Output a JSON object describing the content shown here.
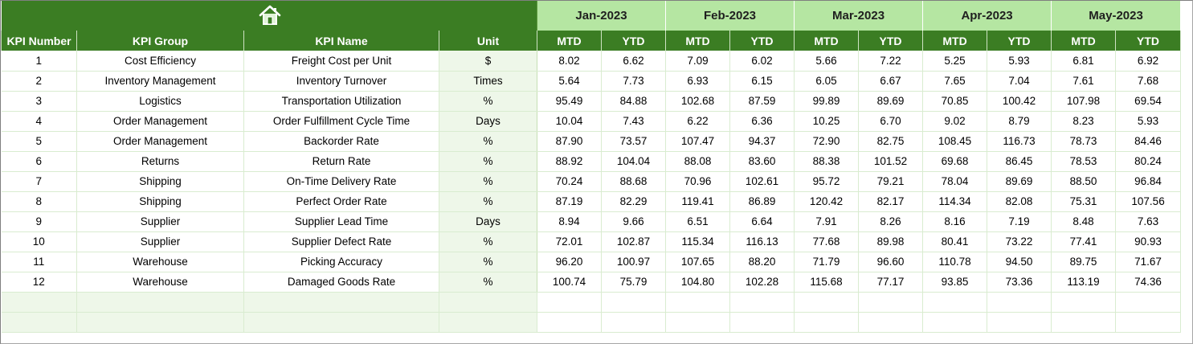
{
  "colors": {
    "header_green": "#3b7d23",
    "month_band_green": "#b5e6a2",
    "unit_band_green": "#eef7e9",
    "header_text": "#ffffff"
  },
  "toolbar": {
    "home_icon": "home-icon"
  },
  "months": [
    {
      "label": "Jan-2023"
    },
    {
      "label": "Feb-2023"
    },
    {
      "label": "Mar-2023"
    },
    {
      "label": "Apr-2023"
    },
    {
      "label": "May-2023"
    }
  ],
  "columns": {
    "kpi_number": "KPI Number",
    "kpi_group": "KPI Group",
    "kpi_name": "KPI Name",
    "unit": "Unit",
    "mtd": "MTD",
    "ytd": "YTD"
  },
  "rows": [
    {
      "num": "1",
      "group": "Cost Efficiency",
      "name": "Freight Cost per Unit",
      "unit": "$",
      "values": [
        "8.02",
        "6.62",
        "7.09",
        "6.02",
        "5.66",
        "7.22",
        "5.25",
        "5.93",
        "6.81",
        "6.92"
      ]
    },
    {
      "num": "2",
      "group": "Inventory Management",
      "name": "Inventory Turnover",
      "unit": "Times",
      "values": [
        "5.64",
        "7.73",
        "6.93",
        "6.15",
        "6.05",
        "6.67",
        "7.65",
        "7.04",
        "7.61",
        "7.68"
      ]
    },
    {
      "num": "3",
      "group": "Logistics",
      "name": "Transportation Utilization",
      "unit": "%",
      "values": [
        "95.49",
        "84.88",
        "102.68",
        "87.59",
        "99.89",
        "89.69",
        "70.85",
        "100.42",
        "107.98",
        "69.54"
      ]
    },
    {
      "num": "4",
      "group": "Order Management",
      "name": "Order Fulfillment Cycle Time",
      "unit": "Days",
      "values": [
        "10.04",
        "7.43",
        "6.22",
        "6.36",
        "10.25",
        "6.70",
        "9.02",
        "8.79",
        "8.23",
        "5.93"
      ]
    },
    {
      "num": "5",
      "group": "Order Management",
      "name": "Backorder Rate",
      "unit": "%",
      "values": [
        "87.90",
        "73.57",
        "107.47",
        "94.37",
        "72.90",
        "82.75",
        "108.45",
        "116.73",
        "78.73",
        "84.46"
      ]
    },
    {
      "num": "6",
      "group": "Returns",
      "name": "Return Rate",
      "unit": "%",
      "values": [
        "88.92",
        "104.04",
        "88.08",
        "83.60",
        "88.38",
        "101.52",
        "69.68",
        "86.45",
        "78.53",
        "80.24"
      ]
    },
    {
      "num": "7",
      "group": "Shipping",
      "name": "On-Time Delivery Rate",
      "unit": "%",
      "values": [
        "70.24",
        "88.68",
        "70.96",
        "102.61",
        "95.72",
        "79.21",
        "78.04",
        "89.69",
        "88.50",
        "96.84"
      ]
    },
    {
      "num": "8",
      "group": "Shipping",
      "name": "Perfect Order Rate",
      "unit": "%",
      "values": [
        "87.19",
        "82.29",
        "119.41",
        "86.89",
        "120.42",
        "82.17",
        "114.34",
        "82.08",
        "75.31",
        "107.56"
      ]
    },
    {
      "num": "9",
      "group": "Supplier",
      "name": "Supplier Lead Time",
      "unit": "Days",
      "values": [
        "8.94",
        "9.66",
        "6.51",
        "6.64",
        "7.91",
        "8.26",
        "8.16",
        "7.19",
        "8.48",
        "7.63"
      ]
    },
    {
      "num": "10",
      "group": "Supplier",
      "name": "Supplier Defect Rate",
      "unit": "%",
      "values": [
        "72.01",
        "102.87",
        "115.34",
        "116.13",
        "77.68",
        "89.98",
        "80.41",
        "73.22",
        "77.41",
        "90.93"
      ]
    },
    {
      "num": "11",
      "group": "Warehouse",
      "name": "Picking Accuracy",
      "unit": "%",
      "values": [
        "96.20",
        "100.97",
        "107.65",
        "88.20",
        "71.79",
        "96.60",
        "110.78",
        "94.50",
        "89.75",
        "71.67"
      ]
    },
    {
      "num": "12",
      "group": "Warehouse",
      "name": "Damaged Goods Rate",
      "unit": "%",
      "values": [
        "100.74",
        "75.79",
        "104.80",
        "102.28",
        "115.68",
        "77.17",
        "93.85",
        "73.36",
        "113.19",
        "74.36"
      ]
    }
  ]
}
